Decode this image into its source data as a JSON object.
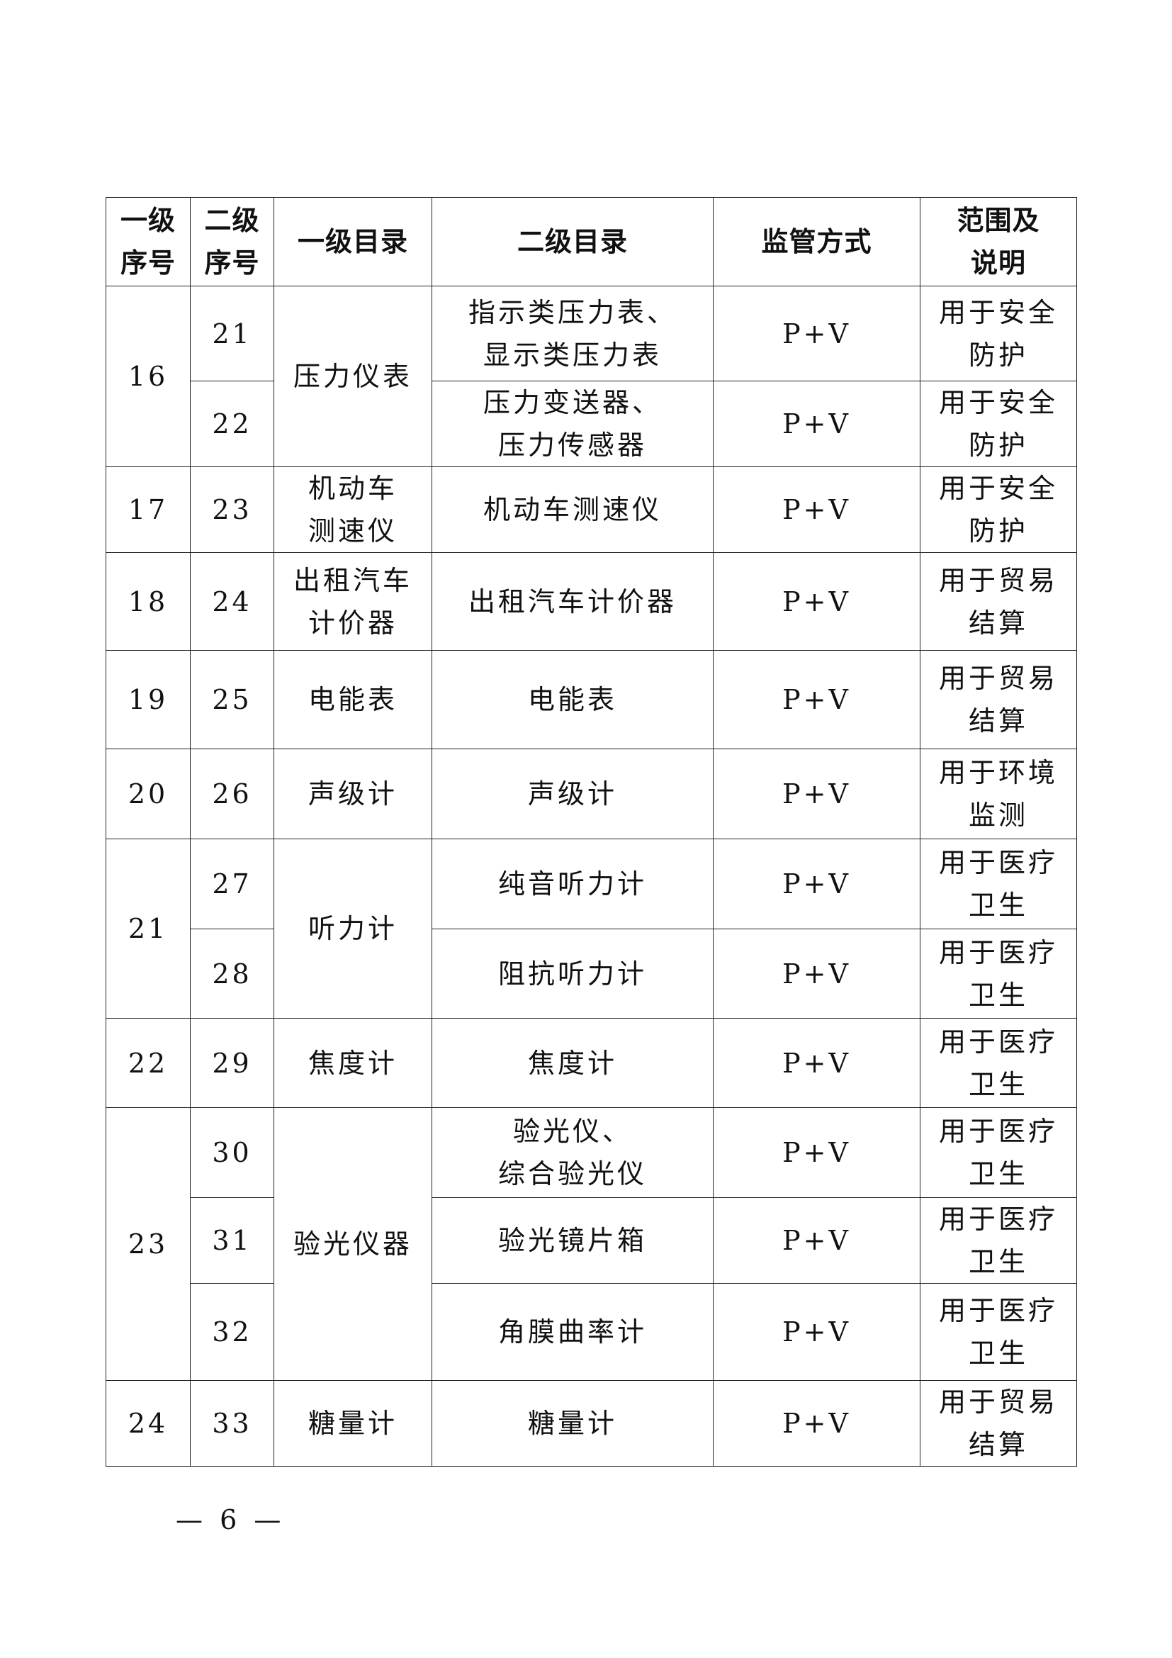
{
  "headers": [
    "一级\n序号",
    "二级\n序号",
    "一级目录",
    "二级目录",
    "监管方式",
    "范围及\n说明"
  ],
  "groups": [
    {
      "no1": "16",
      "name1": "压力仪表",
      "items": [
        {
          "no2": "21",
          "name2": "指示类压力表、\n显示类压力表",
          "method": "P+V",
          "scope": "用于安全\n防护"
        },
        {
          "no2": "22",
          "name2": "压力变送器、\n压力传感器",
          "method": "P+V",
          "scope": "用于安全\n防护"
        }
      ]
    },
    {
      "no1": "17",
      "name1": "机动车\n测速仪",
      "items": [
        {
          "no2": "23",
          "name2": "机动车测速仪",
          "method": "P+V",
          "scope": "用于安全\n防护"
        }
      ]
    },
    {
      "no1": "18",
      "name1": "出租汽车\n计价器",
      "items": [
        {
          "no2": "24",
          "name2": "出租汽车计价器",
          "method": "P+V",
          "scope": "用于贸易\n结算"
        }
      ]
    },
    {
      "no1": "19",
      "name1": "电能表",
      "items": [
        {
          "no2": "25",
          "name2": "电能表",
          "method": "P+V",
          "scope": "用于贸易\n结算"
        }
      ]
    },
    {
      "no1": "20",
      "name1": "声级计",
      "items": [
        {
          "no2": "26",
          "name2": "声级计",
          "method": "P+V",
          "scope": "用于环境\n监测"
        }
      ]
    },
    {
      "no1": "21",
      "name1": "听力计",
      "items": [
        {
          "no2": "27",
          "name2": "纯音听力计",
          "method": "P+V",
          "scope": "用于医疗\n卫生"
        },
        {
          "no2": "28",
          "name2": "阻抗听力计",
          "method": "P+V",
          "scope": "用于医疗\n卫生"
        }
      ]
    },
    {
      "no1": "22",
      "name1": "焦度计",
      "items": [
        {
          "no2": "29",
          "name2": "焦度计",
          "method": "P+V",
          "scope": "用于医疗\n卫生"
        }
      ]
    },
    {
      "no1": "23",
      "name1": "验光仪器",
      "items": [
        {
          "no2": "30",
          "name2": "验光仪、\n综合验光仪",
          "method": "P+V",
          "scope": "用于医疗\n卫生"
        },
        {
          "no2": "31",
          "name2": "验光镜片箱",
          "method": "P+V",
          "scope": "用于医疗\n卫生"
        },
        {
          "no2": "32",
          "name2": "角膜曲率计",
          "method": "P+V",
          "scope": "用于医疗\n卫生"
        }
      ]
    },
    {
      "no1": "24",
      "name1": "糖量计",
      "items": [
        {
          "no2": "33",
          "name2": "糖量计",
          "method": "P+V",
          "scope": "用于贸易\n结算"
        }
      ]
    }
  ],
  "footer": "— 6 —"
}
